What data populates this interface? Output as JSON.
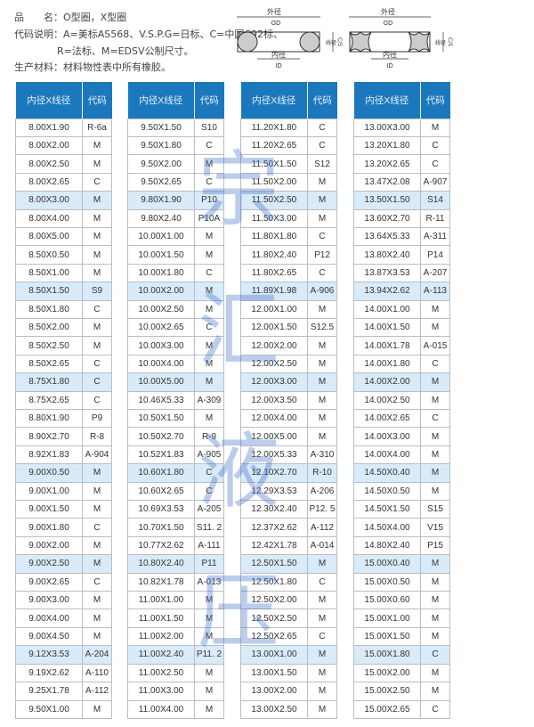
{
  "info": {
    "product_line": "品　　名：O型圈，X型圈",
    "code_line1": "代码说明：A=美标AS568、V.S.P.G=日标、C=中国C92标、",
    "code_line2": "R=法标、M=EDSV公制尺寸。",
    "material_line": "生产材料：材料物性表中所有橡胶。"
  },
  "diagram": {
    "od_cn": "外径",
    "od": "OD",
    "id_cn": "内径",
    "id": "ID",
    "cs_cn": "线径",
    "cs": "C/S"
  },
  "watermark": "宗汇液压",
  "colors": {
    "header": "#1c78bd",
    "highlight": "#d9eaf8"
  },
  "headers": {
    "size": "内径X线径",
    "code": "代码"
  },
  "tables": [
    [
      [
        "8.00X1.90",
        "R-6a"
      ],
      [
        "8.00X2.00",
        "M"
      ],
      [
        "8.00X2.50",
        "M"
      ],
      [
        "8.00X2.65",
        "C"
      ],
      [
        "8.00X3.00",
        "M"
      ],
      [
        "8.00X4.00",
        "M"
      ],
      [
        "8.00X5.00",
        "M"
      ],
      [
        "8.50X0.50",
        "M"
      ],
      [
        "8.50X1.00",
        "M"
      ],
      [
        "8.50X1.50",
        "S9"
      ],
      [
        "8.50X1.80",
        "C"
      ],
      [
        "8.50X2.00",
        "M"
      ],
      [
        "8.50X2.50",
        "M"
      ],
      [
        "8.50X2.65",
        "C"
      ],
      [
        "8.75X1.80",
        "C"
      ],
      [
        "8.75X2.65",
        "C"
      ],
      [
        "8.80X1.90",
        "P9"
      ],
      [
        "8.90X2.70",
        "R-8"
      ],
      [
        "8.92X1.83",
        "A-904"
      ],
      [
        "9.00X0.50",
        "M"
      ],
      [
        "9.00X1.00",
        "M"
      ],
      [
        "9.00X1.50",
        "M"
      ],
      [
        "9.00X1.80",
        "C"
      ],
      [
        "9.00X2.00",
        "M"
      ],
      [
        "9.00X2.50",
        "M"
      ],
      [
        "9.00X2.65",
        "C"
      ],
      [
        "9.00X3.00",
        "M"
      ],
      [
        "9.00X4.00",
        "M"
      ],
      [
        "9.00X4.50",
        "M"
      ],
      [
        "9.12X3.53",
        "A-204"
      ],
      [
        "9.19X2.62",
        "A-110"
      ],
      [
        "9.25X1.78",
        "A-112"
      ],
      [
        "9.50X1.00",
        "M"
      ]
    ],
    [
      [
        "9.50X1.50",
        "S10"
      ],
      [
        "9.50X1.80",
        "C"
      ],
      [
        "9.50X2.00",
        "M"
      ],
      [
        "9.50X2.65",
        "C"
      ],
      [
        "9.80X1.90",
        "P10"
      ],
      [
        "9.80X2.40",
        "P10A"
      ],
      [
        "10.00X1.00",
        "M"
      ],
      [
        "10.00X1.50",
        "M"
      ],
      [
        "10.00X1.80",
        "C"
      ],
      [
        "10.00X2.00",
        "M"
      ],
      [
        "10.00X2.50",
        "M"
      ],
      [
        "10.00X2.65",
        "C"
      ],
      [
        "10.00X3.00",
        "M"
      ],
      [
        "10.00X4.00",
        "M"
      ],
      [
        "10.00X5.00",
        "M"
      ],
      [
        "10.46X5.33",
        "A-309"
      ],
      [
        "10.50X1.50",
        "M"
      ],
      [
        "10.50X2.70",
        "R-9"
      ],
      [
        "10.52X1.83",
        "A-905"
      ],
      [
        "10.60X1.80",
        "C"
      ],
      [
        "10.60X2.65",
        "C"
      ],
      [
        "10.69X3.53",
        "A-205"
      ],
      [
        "10.70X1.50",
        "S11. 2"
      ],
      [
        "10.77X2.62",
        "A-111"
      ],
      [
        "10.80X2.40",
        "P11"
      ],
      [
        "10.82X1.78",
        "A-013"
      ],
      [
        "11.00X1.00",
        "M"
      ],
      [
        "11.00X1.50",
        "M"
      ],
      [
        "11.00X2.00",
        "M"
      ],
      [
        "11.00X2.40",
        "P11. 2"
      ],
      [
        "11.00X2.50",
        "M"
      ],
      [
        "11.00X3.00",
        "M"
      ],
      [
        "11.00X4.00",
        "M"
      ]
    ],
    [
      [
        "11.20X1.80",
        "C"
      ],
      [
        "11.20X2.65",
        "C"
      ],
      [
        "11.50X1.50",
        "S12"
      ],
      [
        "11.50X2.00",
        "M"
      ],
      [
        "11.50X2.50",
        "M"
      ],
      [
        "11.50X3.00",
        "M"
      ],
      [
        "11.80X1.80",
        "C"
      ],
      [
        "11.80X2.40",
        "P12"
      ],
      [
        "11.80X2.65",
        "C"
      ],
      [
        "11.89X1.98",
        "A-906"
      ],
      [
        "12.00X1.00",
        "M"
      ],
      [
        "12.00X1.50",
        "S12.5"
      ],
      [
        "12.00X2.00",
        "M"
      ],
      [
        "12.00X2.50",
        "M"
      ],
      [
        "12.00X3.00",
        "M"
      ],
      [
        "12.00X3.50",
        "M"
      ],
      [
        "12.00X4.00",
        "M"
      ],
      [
        "12.00X5.00",
        "M"
      ],
      [
        "12.00X5.33",
        "A-310"
      ],
      [
        "12.10X2.70",
        "R-10"
      ],
      [
        "12.29X3.53",
        "A-206"
      ],
      [
        "12.30X2.40",
        "P12. 5"
      ],
      [
        "12.37X2.62",
        "A-112"
      ],
      [
        "12.42X1.78",
        "A-014"
      ],
      [
        "12.50X1.50",
        "M"
      ],
      [
        "12.50X1.80",
        "C"
      ],
      [
        "12.50X2.00",
        "M"
      ],
      [
        "12.50X2.50",
        "M"
      ],
      [
        "12.50X2.65",
        "C"
      ],
      [
        "13.00X1.00",
        "M"
      ],
      [
        "13.00X1.50",
        "M"
      ],
      [
        "13.00X2.00",
        "M"
      ],
      [
        "13.00X2.50",
        "M"
      ]
    ],
    [
      [
        "13.00X3.00",
        "M"
      ],
      [
        "13.20X1.80",
        "C"
      ],
      [
        "13.20X2.65",
        "C"
      ],
      [
        "13.47X2.08",
        "A-907"
      ],
      [
        "13.50X1.50",
        "S14"
      ],
      [
        "13.60X2.70",
        "R-11"
      ],
      [
        "13.64X5.33",
        "A-311"
      ],
      [
        "13.80X2.40",
        "P14"
      ],
      [
        "13.87X3.53",
        "A-207"
      ],
      [
        "13.94X2.62",
        "A-113"
      ],
      [
        "14.00X1.00",
        "M"
      ],
      [
        "14.00X1.50",
        "M"
      ],
      [
        "14.00X1.78",
        "A-015"
      ],
      [
        "14.00X1.80",
        "C"
      ],
      [
        "14.00X2.00",
        "M"
      ],
      [
        "14.00X2.50",
        "M"
      ],
      [
        "14.00X2.65",
        "C"
      ],
      [
        "14.00X3.00",
        "M"
      ],
      [
        "14.00X4.00",
        "M"
      ],
      [
        "14.50X0.40",
        "M"
      ],
      [
        "14.50X0.50",
        "M"
      ],
      [
        "14.50X1.50",
        "S15"
      ],
      [
        "14.50X4.00",
        "V15"
      ],
      [
        "14.80X2.40",
        "P15"
      ],
      [
        "15.00X0.40",
        "M"
      ],
      [
        "15.00X0.50",
        "M"
      ],
      [
        "15.00X0.60",
        "M"
      ],
      [
        "15.00X1.00",
        "M"
      ],
      [
        "15.00X1.50",
        "M"
      ],
      [
        "15.00X1.80",
        "C"
      ],
      [
        "15.00X2.00",
        "M"
      ],
      [
        "15.00X2.50",
        "M"
      ],
      [
        "15.00X2.65",
        "C"
      ]
    ]
  ]
}
